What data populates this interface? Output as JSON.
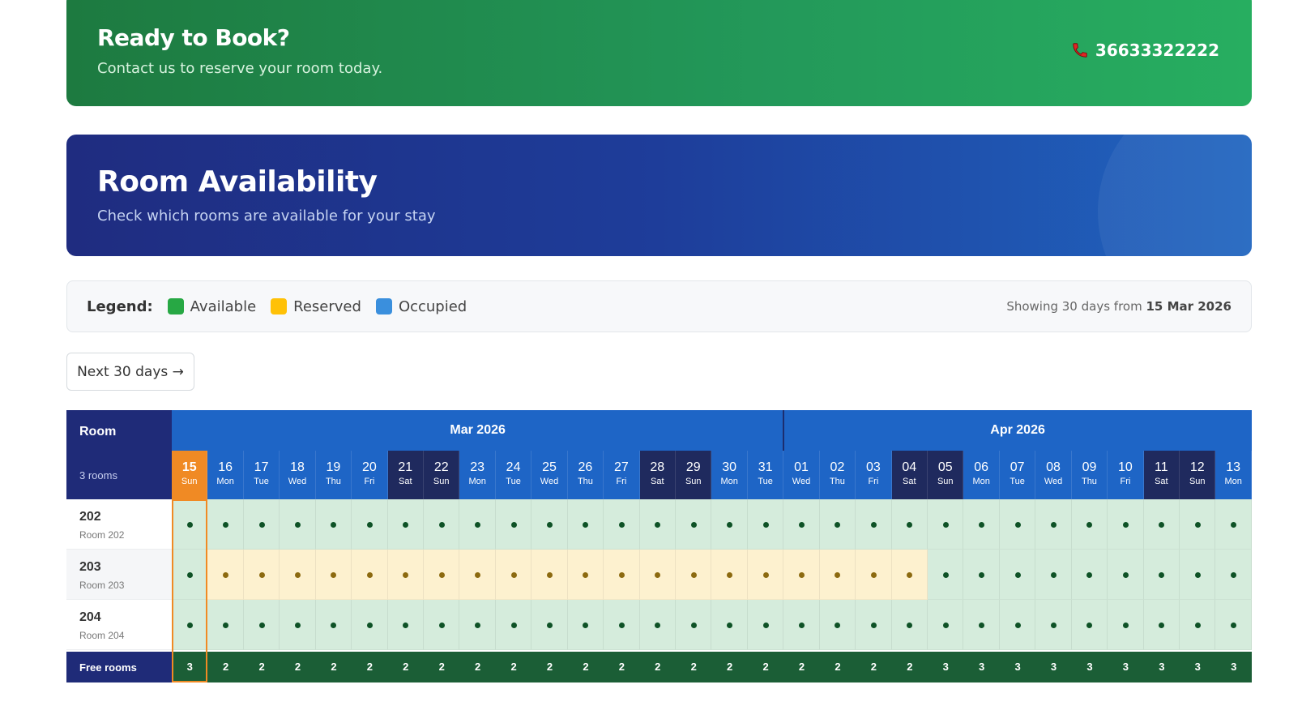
{
  "cta": {
    "title": "Ready to Book?",
    "subtitle": "Contact us to reserve your room today.",
    "phone": "36633322222",
    "phone_icon": "phone-icon",
    "colors": {
      "start": "#1d7a40",
      "end": "#27ae60"
    }
  },
  "hero": {
    "title": "Room Availability",
    "subtitle": "Check which rooms are available for your stay"
  },
  "legend": {
    "label": "Legend:",
    "items": [
      {
        "label": "Available",
        "color": "#27a844"
      },
      {
        "label": "Reserved",
        "color": "#ffc107"
      },
      {
        "label": "Occupied",
        "color": "#3a8fdd"
      }
    ],
    "showing_prefix": "Showing 30 days from",
    "showing_date": "15 Mar 2026"
  },
  "nav": {
    "next_label": "Next 30 days →"
  },
  "calendar": {
    "room_header": "Room",
    "room_count": "3 rooms",
    "months": [
      {
        "label": "Mar 2026",
        "span": 17
      },
      {
        "label": "Apr 2026",
        "span": 13
      }
    ],
    "days": [
      {
        "num": "15",
        "name": "Sun",
        "weekend": false,
        "today": true
      },
      {
        "num": "16",
        "name": "Mon",
        "weekend": false
      },
      {
        "num": "17",
        "name": "Tue",
        "weekend": false
      },
      {
        "num": "18",
        "name": "Wed",
        "weekend": false
      },
      {
        "num": "19",
        "name": "Thu",
        "weekend": false
      },
      {
        "num": "20",
        "name": "Fri",
        "weekend": false
      },
      {
        "num": "21",
        "name": "Sat",
        "weekend": true
      },
      {
        "num": "22",
        "name": "Sun",
        "weekend": true
      },
      {
        "num": "23",
        "name": "Mon",
        "weekend": false
      },
      {
        "num": "24",
        "name": "Tue",
        "weekend": false
      },
      {
        "num": "25",
        "name": "Wed",
        "weekend": false
      },
      {
        "num": "26",
        "name": "Thu",
        "weekend": false
      },
      {
        "num": "27",
        "name": "Fri",
        "weekend": false
      },
      {
        "num": "28",
        "name": "Sat",
        "weekend": true
      },
      {
        "num": "29",
        "name": "Sun",
        "weekend": true
      },
      {
        "num": "30",
        "name": "Mon",
        "weekend": false
      },
      {
        "num": "31",
        "name": "Tue",
        "weekend": false
      },
      {
        "num": "01",
        "name": "Wed",
        "weekend": false
      },
      {
        "num": "02",
        "name": "Thu",
        "weekend": false
      },
      {
        "num": "03",
        "name": "Fri",
        "weekend": false
      },
      {
        "num": "04",
        "name": "Sat",
        "weekend": true
      },
      {
        "num": "05",
        "name": "Sun",
        "weekend": true
      },
      {
        "num": "06",
        "name": "Mon",
        "weekend": false
      },
      {
        "num": "07",
        "name": "Tue",
        "weekend": false
      },
      {
        "num": "08",
        "name": "Wed",
        "weekend": false
      },
      {
        "num": "09",
        "name": "Thu",
        "weekend": false
      },
      {
        "num": "10",
        "name": "Fri",
        "weekend": false
      },
      {
        "num": "11",
        "name": "Sat",
        "weekend": true
      },
      {
        "num": "12",
        "name": "Sun",
        "weekend": true
      },
      {
        "num": "13",
        "name": "Mon",
        "weekend": false
      }
    ],
    "rooms": [
      {
        "number": "202",
        "name": "Room 202",
        "status": [
          "available",
          "available",
          "available",
          "available",
          "available",
          "available",
          "available",
          "available",
          "available",
          "available",
          "available",
          "available",
          "available",
          "available",
          "available",
          "available",
          "available",
          "available",
          "available",
          "available",
          "available",
          "available",
          "available",
          "available",
          "available",
          "available",
          "available",
          "available",
          "available",
          "available"
        ]
      },
      {
        "number": "203",
        "name": "Room 203",
        "status": [
          "available",
          "reserved",
          "reserved",
          "reserved",
          "reserved",
          "reserved",
          "reserved",
          "reserved",
          "reserved",
          "reserved",
          "reserved",
          "reserved",
          "reserved",
          "reserved",
          "reserved",
          "reserved",
          "reserved",
          "reserved",
          "reserved",
          "reserved",
          "reserved",
          "available",
          "available",
          "available",
          "available",
          "available",
          "available",
          "available",
          "available",
          "available"
        ]
      },
      {
        "number": "204",
        "name": "Room 204",
        "status": [
          "available",
          "available",
          "available",
          "available",
          "available",
          "available",
          "available",
          "available",
          "available",
          "available",
          "available",
          "available",
          "available",
          "available",
          "available",
          "available",
          "available",
          "available",
          "available",
          "available",
          "available",
          "available",
          "available",
          "available",
          "available",
          "available",
          "available",
          "available",
          "available",
          "available"
        ]
      }
    ],
    "free_label": "Free rooms",
    "free_counts": [
      "3",
      "2",
      "2",
      "2",
      "2",
      "2",
      "2",
      "2",
      "2",
      "2",
      "2",
      "2",
      "2",
      "2",
      "2",
      "2",
      "2",
      "2",
      "2",
      "2",
      "2",
      "3",
      "3",
      "3",
      "3",
      "3",
      "3",
      "3",
      "3",
      "3"
    ]
  }
}
